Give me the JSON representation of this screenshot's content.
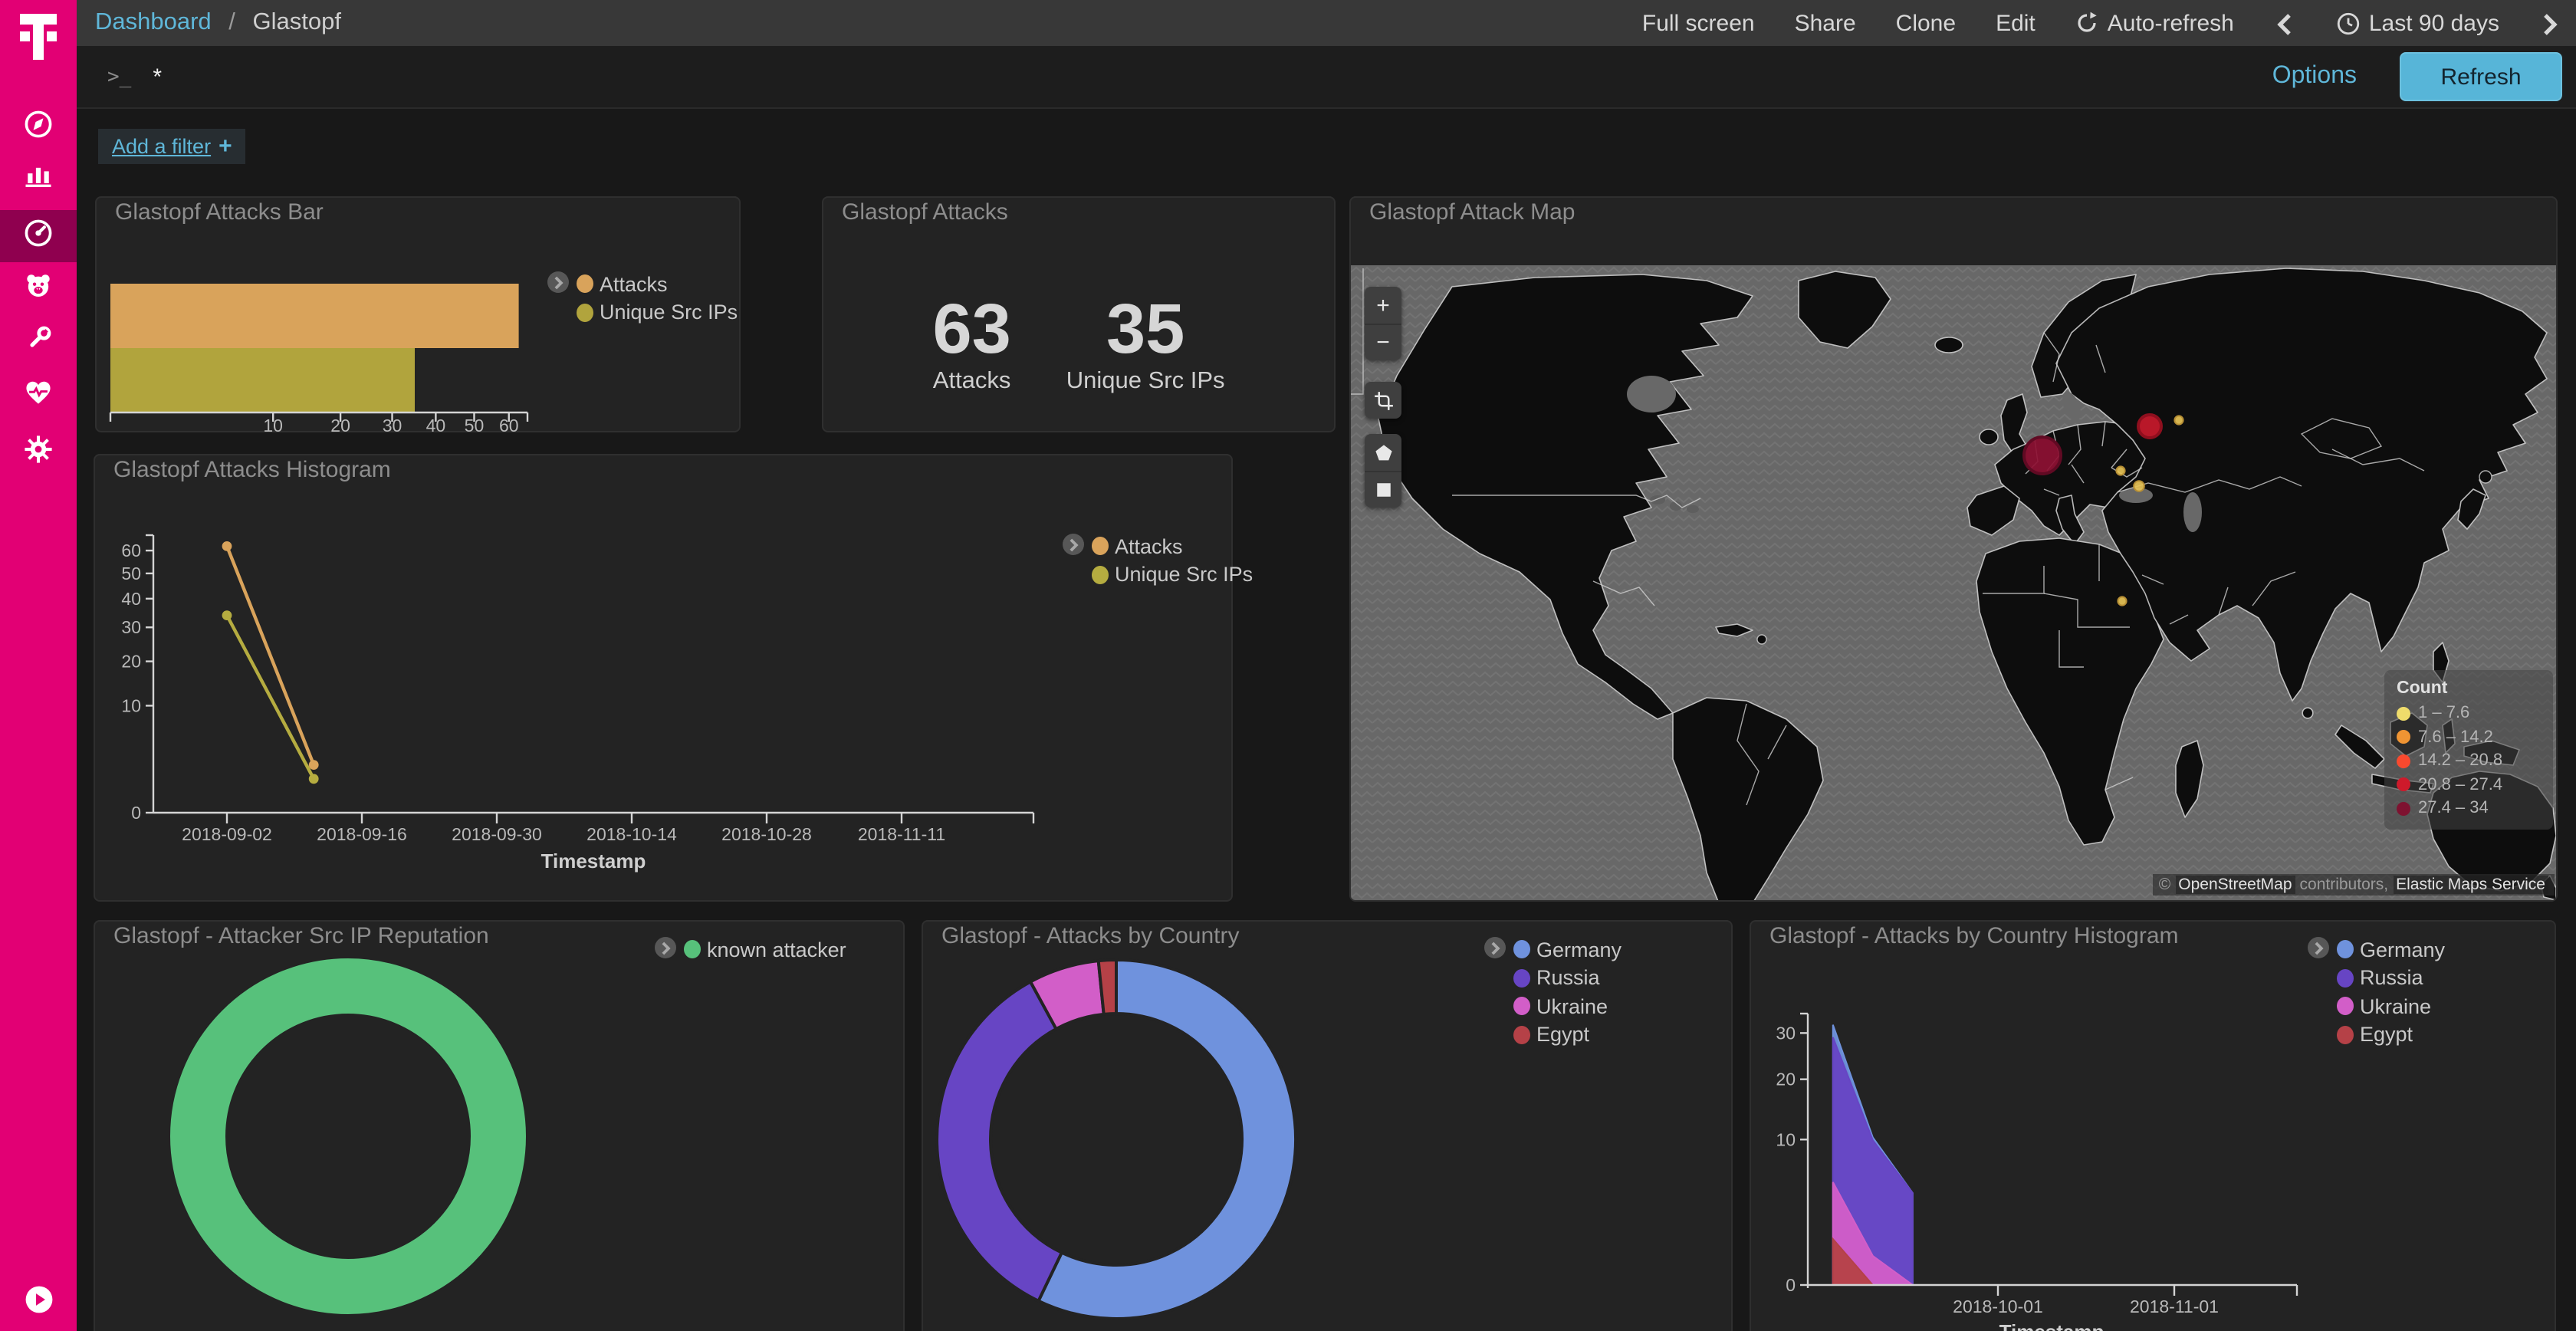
{
  "app": {
    "bg": "#181818",
    "accent_magenta": "#e20074",
    "accent_blue": "#59b6d7"
  },
  "sidebar": {
    "logo_icon": "telekom-t-logo",
    "items": [
      {
        "icon": "compass"
      },
      {
        "icon": "bar-chart"
      },
      {
        "icon": "gauge",
        "active": true
      },
      {
        "icon": "bear"
      },
      {
        "icon": "wrench"
      },
      {
        "icon": "heartbeat"
      },
      {
        "icon": "gear"
      }
    ],
    "collapse_icon": "play-circle"
  },
  "topbar": {
    "breadcrumb_link": "Dashboard",
    "breadcrumb_sep": "/",
    "breadcrumb_current": "Glastopf",
    "menu": [
      "Full screen",
      "Share",
      "Clone",
      "Edit"
    ],
    "auto_refresh": "Auto-refresh",
    "time_range": "Last 90 days"
  },
  "query_bar": {
    "prompt": ">_",
    "value": "*",
    "options_label": "Options",
    "refresh_label": "Refresh"
  },
  "filter_bar": {
    "add_filter_label": "Add a filter",
    "plus": "+"
  },
  "map": {
    "controls": {
      "zoom_in": "+",
      "zoom_out": "−",
      "tools": [
        "crop",
        "polygon",
        "rectangle"
      ]
    },
    "legend": {
      "title": "Count",
      "entries": [
        {
          "range": "1 – 7.6",
          "color": "#efdc6b"
        },
        {
          "range": "7.6 – 14.2",
          "color": "#ef9433"
        },
        {
          "range": "14.2 – 20.8",
          "color": "#f9492e"
        },
        {
          "range": "20.8 – 27.4",
          "color": "#ce1a2b"
        },
        {
          "range": "27.4 – 34",
          "color": "#7e1230"
        }
      ]
    },
    "attribution": {
      "prefix": "©",
      "link_osm": "OpenStreetMap",
      "middle": "contributors,",
      "link_ems": "Elastic Maps Service"
    },
    "points": [
      {
        "x": 451,
        "y": 124,
        "r": 12,
        "color": "#8e1033",
        "stroke": "#600a23"
      },
      {
        "x": 521,
        "y": 105,
        "r": 7.5,
        "color": "#c8192b",
        "stroke": "#8f0f1e"
      },
      {
        "x": 540,
        "y": 101,
        "r": 2.8,
        "color": "#e7c356",
        "stroke": "#b78f35"
      },
      {
        "x": 502,
        "y": 134,
        "r": 2.8,
        "color": "#e7c356",
        "stroke": "#b78f35"
      },
      {
        "x": 514,
        "y": 144,
        "r": 3.4,
        "color": "#e7c356",
        "stroke": "#b78f35"
      },
      {
        "x": 503,
        "y": 219,
        "r": 2.8,
        "color": "#e7c356",
        "stroke": "#b78f35"
      }
    ]
  },
  "chart_data": [
    {
      "type": "bar",
      "title": "Glastopf Attacks Bar",
      "orientation": "horizontal",
      "scale": "sqrt",
      "x_ticks": [
        10,
        20,
        30,
        40,
        50,
        60
      ],
      "series": [
        {
          "name": "Attacks",
          "color": "#d9a35b",
          "value": 63
        },
        {
          "name": "Unique Src IPs",
          "color": "#b1a43d",
          "value": 35
        }
      ]
    },
    {
      "type": "metric",
      "title": "Glastopf Attacks",
      "metrics": [
        {
          "value": "63",
          "label": "Attacks"
        },
        {
          "value": "35",
          "label": "Unique Src IPs"
        }
      ]
    },
    {
      "type": "map",
      "title": "Glastopf Attack Map"
    },
    {
      "type": "line",
      "title": "Glastopf Attacks Histogram",
      "xlabel": "Timestamp",
      "scale": "sqrt",
      "y_ticks": [
        0,
        10,
        20,
        30,
        40,
        50,
        60
      ],
      "x_ticks": [
        "2018-09-02",
        "2018-09-16",
        "2018-09-30",
        "2018-10-14",
        "2018-10-28",
        "2018-11-11"
      ],
      "series": [
        {
          "name": "Attacks",
          "color": "#d9a35b",
          "points": [
            [
              "2018-09-02",
              62
            ],
            [
              "2018-09-11",
              2
            ]
          ]
        },
        {
          "name": "Unique Src IPs",
          "color": "#b5ac40",
          "points": [
            [
              "2018-09-02",
              34
            ],
            [
              "2018-09-11",
              1
            ]
          ]
        }
      ]
    },
    {
      "type": "pie",
      "title": "Glastopf - Attacker Src IP Reputation",
      "slices": [
        {
          "name": "known attacker",
          "color": "#57c17b",
          "value": 63
        }
      ]
    },
    {
      "type": "pie",
      "title": "Glastopf - Attacks by Country",
      "slices": [
        {
          "name": "Germany",
          "color": "#6f92dd",
          "value": 36
        },
        {
          "name": "Russia",
          "color": "#6745c4",
          "value": 22
        },
        {
          "name": "Ukraine",
          "color": "#d25ec8",
          "value": 4
        },
        {
          "name": "Egypt",
          "color": "#b54147",
          "value": 1
        }
      ]
    },
    {
      "type": "area",
      "title": "Glastopf - Attacks by Country Histogram",
      "xlabel": "Timestamp",
      "scale": "sqrt",
      "stacked": true,
      "y_ticks": [
        0,
        10,
        20,
        30
      ],
      "x_ticks": [
        "2018-10-01",
        "2018-11-01"
      ],
      "dates": [
        "2018-09-02",
        "2018-09-09",
        "2018-09-16"
      ],
      "series": [
        {
          "name": "Germany",
          "color": "#6f92dd",
          "values": [
            3,
            0.4,
            0
          ]
        },
        {
          "name": "Russia",
          "color": "#6745c4",
          "values": [
            24,
            9.5,
            4
          ]
        },
        {
          "name": "Ukraine",
          "color": "#d25ec8",
          "values": [
            4,
            0.4,
            0
          ]
        },
        {
          "name": "Egypt",
          "color": "#b54147",
          "values": [
            1,
            0,
            0
          ]
        }
      ]
    }
  ]
}
